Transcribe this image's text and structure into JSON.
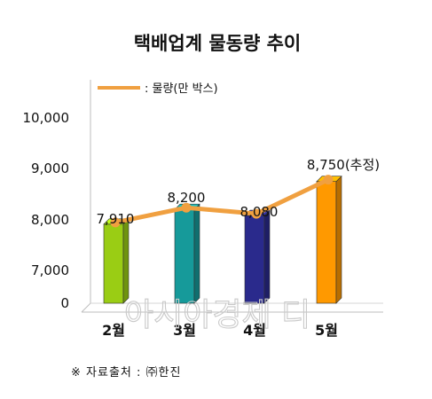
{
  "chart_data": {
    "type": "bar",
    "title": "택배업계 물동량 추이",
    "categories": [
      "2월",
      "3월",
      "4월",
      "5월"
    ],
    "series": [
      {
        "name": "물량(만 박스)",
        "values": [
          7910,
          8200,
          8080,
          8750
        ]
      }
    ],
    "data_labels": [
      "7,910",
      "8,200",
      "8,080",
      "8,750(추정)"
    ],
    "bar_colors": [
      "#9acd14",
      "#169a9a",
      "#2a2a8c",
      "#ff9900"
    ],
    "line_color": "#f0a040",
    "yticks": [
      "10,000",
      "9,000",
      "8,000",
      "7,000",
      "0"
    ],
    "ylim": [
      7000,
      10500
    ],
    "y_axis_break": true,
    "legend": {
      "label": ": 물량(만 박스)",
      "position": "top-left"
    },
    "grid": false,
    "source_note": "※ 자료출처 : ㈜한진",
    "watermark": "아시아경제 디"
  }
}
